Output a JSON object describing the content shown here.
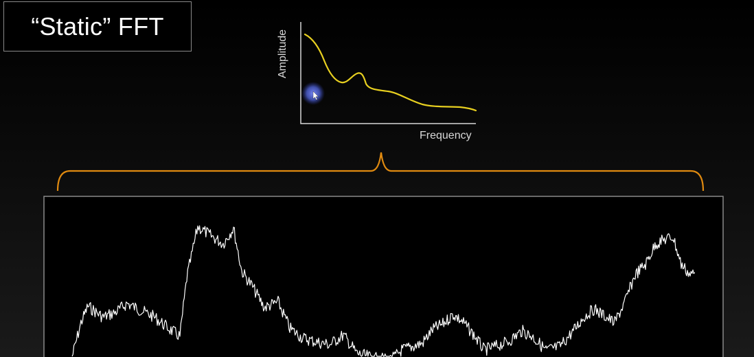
{
  "slide": {
    "title": "“Static” FFT"
  },
  "spectrum_plot": {
    "y_axis_label": "Amplitude",
    "x_axis_label": "Frequency",
    "curve_color": "#e8d020",
    "axis_color": "#d8d8d8"
  },
  "bracket": {
    "color": "#e08a10"
  },
  "signal_panel": {
    "trace_color": "#ffffff",
    "border_color": "#8a8a8a"
  },
  "cursor": {
    "icon": "cursor-icon",
    "highlight_color": "#5a6ed8"
  }
}
